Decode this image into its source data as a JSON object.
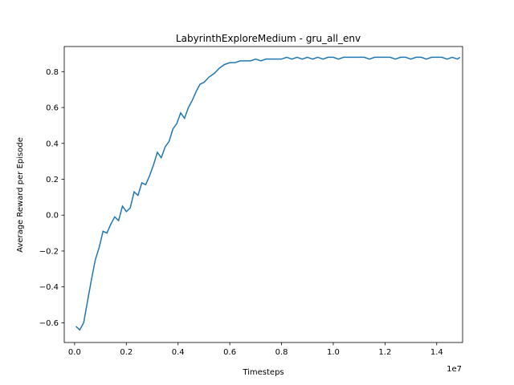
{
  "chart_data": {
    "type": "line",
    "title": "LabyrinthExploreMedium - gru_all_env",
    "xlabel": "Timesteps",
    "ylabel": "Average Reward per Episode",
    "x_offset_label": "1e7",
    "x_scale": 10000000,
    "xlim": [
      -0.04,
      1.5
    ],
    "ylim": [
      -0.71,
      0.94
    ],
    "xticks": [
      0.0,
      0.2,
      0.4,
      0.6,
      0.8,
      1.0,
      1.2,
      1.4
    ],
    "xtick_labels": [
      "0.0",
      "0.2",
      "0.4",
      "0.6",
      "0.8",
      "1.0",
      "1.2",
      "1.4"
    ],
    "yticks": [
      -0.6,
      -0.4,
      -0.2,
      0.0,
      0.2,
      0.4,
      0.6,
      0.8
    ],
    "ytick_labels": [
      "−0.6",
      "−0.4",
      "−0.2",
      "0.0",
      "0.2",
      "0.4",
      "0.6",
      "0.8"
    ],
    "grid": false,
    "legend": "none",
    "line_color": "#1f77b4",
    "series": [
      {
        "x": [
          0.005,
          0.02,
          0.035,
          0.05,
          0.065,
          0.08,
          0.095,
          0.11,
          0.125,
          0.14,
          0.155,
          0.17,
          0.185,
          0.2,
          0.215,
          0.23,
          0.245,
          0.26,
          0.275,
          0.29,
          0.305,
          0.32,
          0.335,
          0.35,
          0.365,
          0.38,
          0.395,
          0.41,
          0.425,
          0.44,
          0.455,
          0.47,
          0.485,
          0.5,
          0.52,
          0.54,
          0.56,
          0.58,
          0.6,
          0.62,
          0.64,
          0.66,
          0.68,
          0.7,
          0.72,
          0.74,
          0.76,
          0.78,
          0.8,
          0.82,
          0.84,
          0.86,
          0.88,
          0.9,
          0.92,
          0.94,
          0.96,
          0.98,
          1.0,
          1.02,
          1.04,
          1.06,
          1.08,
          1.1,
          1.12,
          1.14,
          1.16,
          1.18,
          1.2,
          1.22,
          1.24,
          1.26,
          1.28,
          1.3,
          1.32,
          1.34,
          1.36,
          1.38,
          1.4,
          1.42,
          1.44,
          1.46,
          1.48,
          1.49
        ],
        "y": [
          -0.62,
          -0.64,
          -0.6,
          -0.48,
          -0.36,
          -0.25,
          -0.18,
          -0.09,
          -0.1,
          -0.05,
          -0.01,
          -0.03,
          0.05,
          0.02,
          0.04,
          0.13,
          0.11,
          0.18,
          0.17,
          0.22,
          0.28,
          0.35,
          0.32,
          0.38,
          0.41,
          0.48,
          0.51,
          0.57,
          0.54,
          0.6,
          0.64,
          0.69,
          0.73,
          0.74,
          0.77,
          0.79,
          0.82,
          0.84,
          0.85,
          0.85,
          0.86,
          0.86,
          0.86,
          0.87,
          0.86,
          0.87,
          0.87,
          0.87,
          0.87,
          0.88,
          0.87,
          0.88,
          0.87,
          0.88,
          0.87,
          0.88,
          0.87,
          0.88,
          0.88,
          0.87,
          0.88,
          0.88,
          0.88,
          0.88,
          0.88,
          0.87,
          0.88,
          0.88,
          0.88,
          0.88,
          0.87,
          0.88,
          0.88,
          0.87,
          0.88,
          0.88,
          0.87,
          0.88,
          0.88,
          0.88,
          0.87,
          0.88,
          0.87,
          0.88
        ]
      }
    ]
  }
}
